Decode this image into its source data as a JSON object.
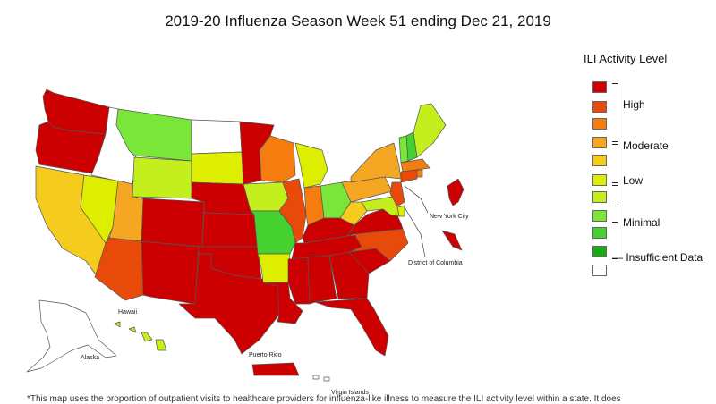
{
  "title": "2019-20 Influenza Season Week 51 ending Dec 21, 2019",
  "legend": {
    "title": "ILI Activity Level",
    "levels": [
      {
        "level": 10,
        "color": "#cc0000"
      },
      {
        "level": 9,
        "color": "#e84a0a"
      },
      {
        "level": 8,
        "color": "#f57d0f"
      },
      {
        "level": 7,
        "color": "#f5a623"
      },
      {
        "level": 6,
        "color": "#f5cc1d"
      },
      {
        "level": 5,
        "color": "#ddee00"
      },
      {
        "level": 4,
        "color": "#c4ef1c"
      },
      {
        "level": 3,
        "color": "#7ae63a"
      },
      {
        "level": 2,
        "color": "#45d130"
      },
      {
        "level": 1,
        "color": "#1aa81a"
      },
      {
        "level": 0,
        "color": "#ffffff"
      }
    ],
    "groups": {
      "high": "High",
      "moderate": "Moderate",
      "low": "Low",
      "minimal": "Minimal",
      "insufficient": "Insufficient Data"
    }
  },
  "region_labels": {
    "new_york_city": "New York City",
    "district_of_columbia": "District of Columbia",
    "hawaii": "Hawaii",
    "alaska": "Alaska",
    "puerto_rico": "Puerto Rico",
    "virgin_islands": "Virgin Islands"
  },
  "footnote": "*This map uses the proportion of outpatient visits to healthcare providers for influenza-like illness to measure the ILI activity level within a state. It does",
  "state_levels": {
    "WA": 10,
    "OR": 10,
    "CA": 6,
    "NV": 5,
    "ID": 0,
    "MT": 3,
    "WY": 4,
    "UT": 7,
    "AZ": 9,
    "CO": 10,
    "NM": 10,
    "ND": 0,
    "SD": 5,
    "NE": 10,
    "KS": 10,
    "OK": 10,
    "TX": 10,
    "MN": 10,
    "IA": 4,
    "MO": 2,
    "AR": 5,
    "LA": 10,
    "WI": 8,
    "IL": 9,
    "MI": 5,
    "IN": 8,
    "OH": 3,
    "KY": 10,
    "TN": 10,
    "MS": 10,
    "AL": 10,
    "GA": 10,
    "FL": 10,
    "SC": 10,
    "NC": 9,
    "VA": 10,
    "WV": 6,
    "PA": 7,
    "NY": 7,
    "VT": 3,
    "NH": 2,
    "ME": 4,
    "MA": 8,
    "CT": 9,
    "RI": 8,
    "NJ": 9,
    "DE": 5,
    "MD": 4,
    "NYC": 10,
    "DC": 10,
    "AK": 0,
    "HI": 4,
    "PR": 10,
    "VI": 0
  }
}
